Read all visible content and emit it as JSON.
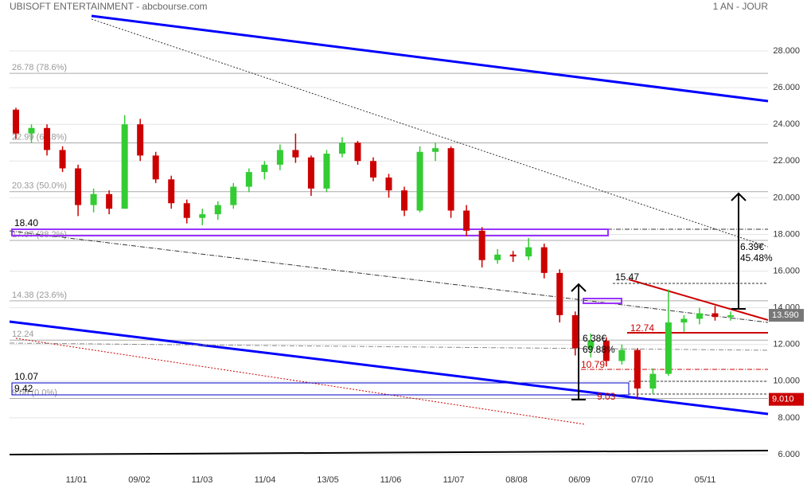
{
  "chart_data": {
    "type": "candlestick",
    "title": "UBISOFT ENTERTAINMENT - abcbourse.com",
    "subtitle": "1 AN - JOUR",
    "categories": [
      "11/01",
      "09/02",
      "11/03",
      "11/04",
      "13/05",
      "11/06",
      "11/07",
      "08/08",
      "06/09",
      "07/10",
      "05/11"
    ],
    "ylim": [
      6,
      28
    ],
    "yticks": [
      {
        "value": 6,
        "label": "6.000"
      },
      {
        "value": 8,
        "label": "8.000"
      },
      {
        "value": 10,
        "label": "10.000"
      },
      {
        "value": 12,
        "label": "12.000"
      },
      {
        "value": 14,
        "label": "14.000"
      },
      {
        "value": 16,
        "label": "16.000"
      },
      {
        "value": 18,
        "label": "18.000"
      },
      {
        "value": 20,
        "label": "20.000"
      },
      {
        "value": 22,
        "label": "22.000"
      },
      {
        "value": 24,
        "label": "24.000"
      },
      {
        "value": 26,
        "label": "26.000"
      },
      {
        "value": 28,
        "label": "28.000"
      }
    ],
    "grid": true,
    "up_color": "#33cc33",
    "down_color": "#cc0000",
    "candles": [
      {
        "open": 24.8,
        "high": 24.9,
        "low": 23.2,
        "close": 23.5
      },
      {
        "open": 23.5,
        "high": 24.0,
        "low": 23.0,
        "close": 23.8
      },
      {
        "open": 23.8,
        "high": 24.0,
        "low": 22.3,
        "close": 22.6
      },
      {
        "open": 22.6,
        "high": 22.8,
        "low": 21.4,
        "close": 21.6
      },
      {
        "open": 21.6,
        "high": 21.8,
        "low": 19.0,
        "close": 19.6
      },
      {
        "open": 19.6,
        "high": 20.5,
        "low": 19.2,
        "close": 20.2
      },
      {
        "open": 20.2,
        "high": 20.4,
        "low": 19.1,
        "close": 19.4
      },
      {
        "open": 19.4,
        "high": 24.5,
        "low": 19.4,
        "close": 24.0
      },
      {
        "open": 24.0,
        "high": 24.3,
        "low": 22.0,
        "close": 22.3
      },
      {
        "open": 22.3,
        "high": 22.5,
        "low": 20.8,
        "close": 21.0
      },
      {
        "open": 21.0,
        "high": 21.2,
        "low": 19.4,
        "close": 19.7
      },
      {
        "open": 19.7,
        "high": 19.9,
        "low": 18.6,
        "close": 18.9
      },
      {
        "open": 18.9,
        "high": 19.4,
        "low": 18.5,
        "close": 19.1
      },
      {
        "open": 19.1,
        "high": 19.8,
        "low": 18.8,
        "close": 19.6
      },
      {
        "open": 19.6,
        "high": 20.8,
        "low": 19.4,
        "close": 20.6
      },
      {
        "open": 20.6,
        "high": 21.6,
        "low": 20.3,
        "close": 21.4
      },
      {
        "open": 21.4,
        "high": 22.0,
        "low": 21.0,
        "close": 21.8
      },
      {
        "open": 21.8,
        "high": 22.9,
        "low": 21.5,
        "close": 22.6
      },
      {
        "open": 22.6,
        "high": 23.5,
        "low": 21.9,
        "close": 22.2
      },
      {
        "open": 22.2,
        "high": 22.3,
        "low": 20.1,
        "close": 20.5
      },
      {
        "open": 20.5,
        "high": 22.6,
        "low": 20.3,
        "close": 22.4
      },
      {
        "open": 22.4,
        "high": 23.3,
        "low": 22.2,
        "close": 23.0
      },
      {
        "open": 23.0,
        "high": 23.1,
        "low": 21.8,
        "close": 22.0
      },
      {
        "open": 22.0,
        "high": 22.2,
        "low": 20.9,
        "close": 21.1
      },
      {
        "open": 21.1,
        "high": 21.3,
        "low": 20.0,
        "close": 20.4
      },
      {
        "open": 20.4,
        "high": 20.6,
        "low": 19.0,
        "close": 19.3
      },
      {
        "open": 19.3,
        "high": 22.8,
        "low": 19.2,
        "close": 22.5
      },
      {
        "open": 22.5,
        "high": 23.0,
        "low": 22.0,
        "close": 22.7
      },
      {
        "open": 22.7,
        "high": 22.8,
        "low": 18.9,
        "close": 19.3
      },
      {
        "open": 19.3,
        "high": 19.6,
        "low": 17.9,
        "close": 18.2
      },
      {
        "open": 18.2,
        "high": 18.4,
        "low": 16.2,
        "close": 16.6
      },
      {
        "open": 16.6,
        "high": 17.2,
        "low": 16.4,
        "close": 16.9
      },
      {
        "open": 16.9,
        "high": 17.1,
        "low": 16.5,
        "close": 16.8
      },
      {
        "open": 16.8,
        "high": 17.8,
        "low": 16.6,
        "close": 17.3
      },
      {
        "open": 17.3,
        "high": 17.5,
        "low": 15.6,
        "close": 15.9
      },
      {
        "open": 15.9,
        "high": 16.1,
        "low": 13.2,
        "close": 13.6
      },
      {
        "open": 13.6,
        "high": 13.8,
        "low": 11.4,
        "close": 11.8
      },
      {
        "open": 11.8,
        "high": 12.6,
        "low": 11.3,
        "close": 12.2
      },
      {
        "open": 12.2,
        "high": 12.4,
        "low": 10.8,
        "close": 11.1
      },
      {
        "open": 11.1,
        "high": 12.0,
        "low": 10.9,
        "close": 11.7
      },
      {
        "open": 11.7,
        "high": 11.8,
        "low": 9.0,
        "close": 9.6
      },
      {
        "open": 9.6,
        "high": 10.7,
        "low": 9.3,
        "close": 10.4
      },
      {
        "open": 10.4,
        "high": 15.0,
        "low": 10.3,
        "close": 13.2
      },
      {
        "open": 13.2,
        "high": 13.6,
        "low": 12.7,
        "close": 13.4
      },
      {
        "open": 13.4,
        "high": 14.0,
        "low": 13.1,
        "close": 13.7
      },
      {
        "open": 13.7,
        "high": 14.1,
        "low": 13.3,
        "close": 13.5
      },
      {
        "open": 13.5,
        "high": 13.8,
        "low": 13.3,
        "close": 13.59
      }
    ],
    "fib_levels": [
      {
        "value": 26.78,
        "label": "26.78  (78.6%)"
      },
      {
        "value": 22.99,
        "label": "22.99  (61.8%)"
      },
      {
        "value": 20.33,
        "label": "20.33  (50.0%)"
      },
      {
        "value": 17.67,
        "label": "17.67  (38.2%)"
      },
      {
        "value": 14.38,
        "label": "14.38  (23.6%)"
      },
      {
        "value": 12.24,
        "label": "12.24"
      },
      {
        "value": 9.06,
        "label": "9.06  (0.0%)"
      }
    ],
    "annotations": [
      "18.40",
      "10.07",
      "9.42",
      "15.47",
      "12.74",
      "6.38€",
      "69.88%",
      "10.79",
      "9.03",
      "6.39€",
      "45.48%"
    ],
    "last_price": {
      "value": 13.59,
      "label": "13.590"
    },
    "marker_price": {
      "value": 9.01,
      "label": "9.010"
    }
  }
}
